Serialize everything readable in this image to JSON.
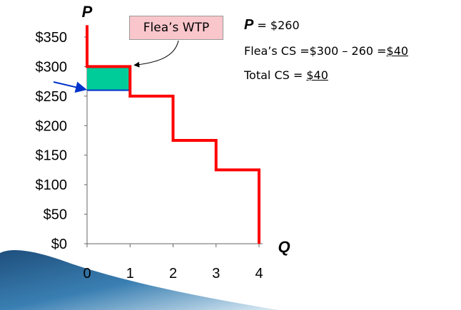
{
  "chart_data": {
    "type": "line",
    "title": "",
    "xlabel": "Q",
    "ylabel": "P",
    "xlim": [
      0,
      4
    ],
    "ylim": [
      0,
      350
    ],
    "x_ticks": [
      0,
      1,
      2,
      3,
      4
    ],
    "y_ticks": [
      0,
      50,
      100,
      150,
      200,
      250,
      300,
      350
    ],
    "y_tick_labels": [
      "$0",
      "$50",
      "$100",
      "$150",
      "$200",
      "$250",
      "$300",
      "$350"
    ],
    "demand_steps": [
      {
        "q_from": 0,
        "q_to": 1,
        "p": 300
      },
      {
        "q_from": 1,
        "q_to": 2,
        "p": 250
      },
      {
        "q_from": 2,
        "q_to": 3,
        "p": 175
      },
      {
        "q_from": 3,
        "q_to": 4,
        "p": 125
      }
    ],
    "demand_top": 370,
    "price": 260,
    "consumer_surplus": {
      "q_from": 0,
      "q_to": 1,
      "p_low": 260,
      "p_high": 300
    },
    "colors": {
      "demand": "#ff0000",
      "surplus": "#00cc99",
      "price_line": "#0033cc",
      "callout": "#f9c6cb"
    }
  },
  "annotation": {
    "callout": "Flea’s WTP",
    "price_arrow": "blue-arrow"
  },
  "notes": {
    "price_sym": "P",
    "price_val": " = $260",
    "cs_prefix": "Flea’s CS =$300 – 260 =",
    "cs_value": "$40",
    "total_prefix": "Total CS = ",
    "total_value": "$40"
  }
}
